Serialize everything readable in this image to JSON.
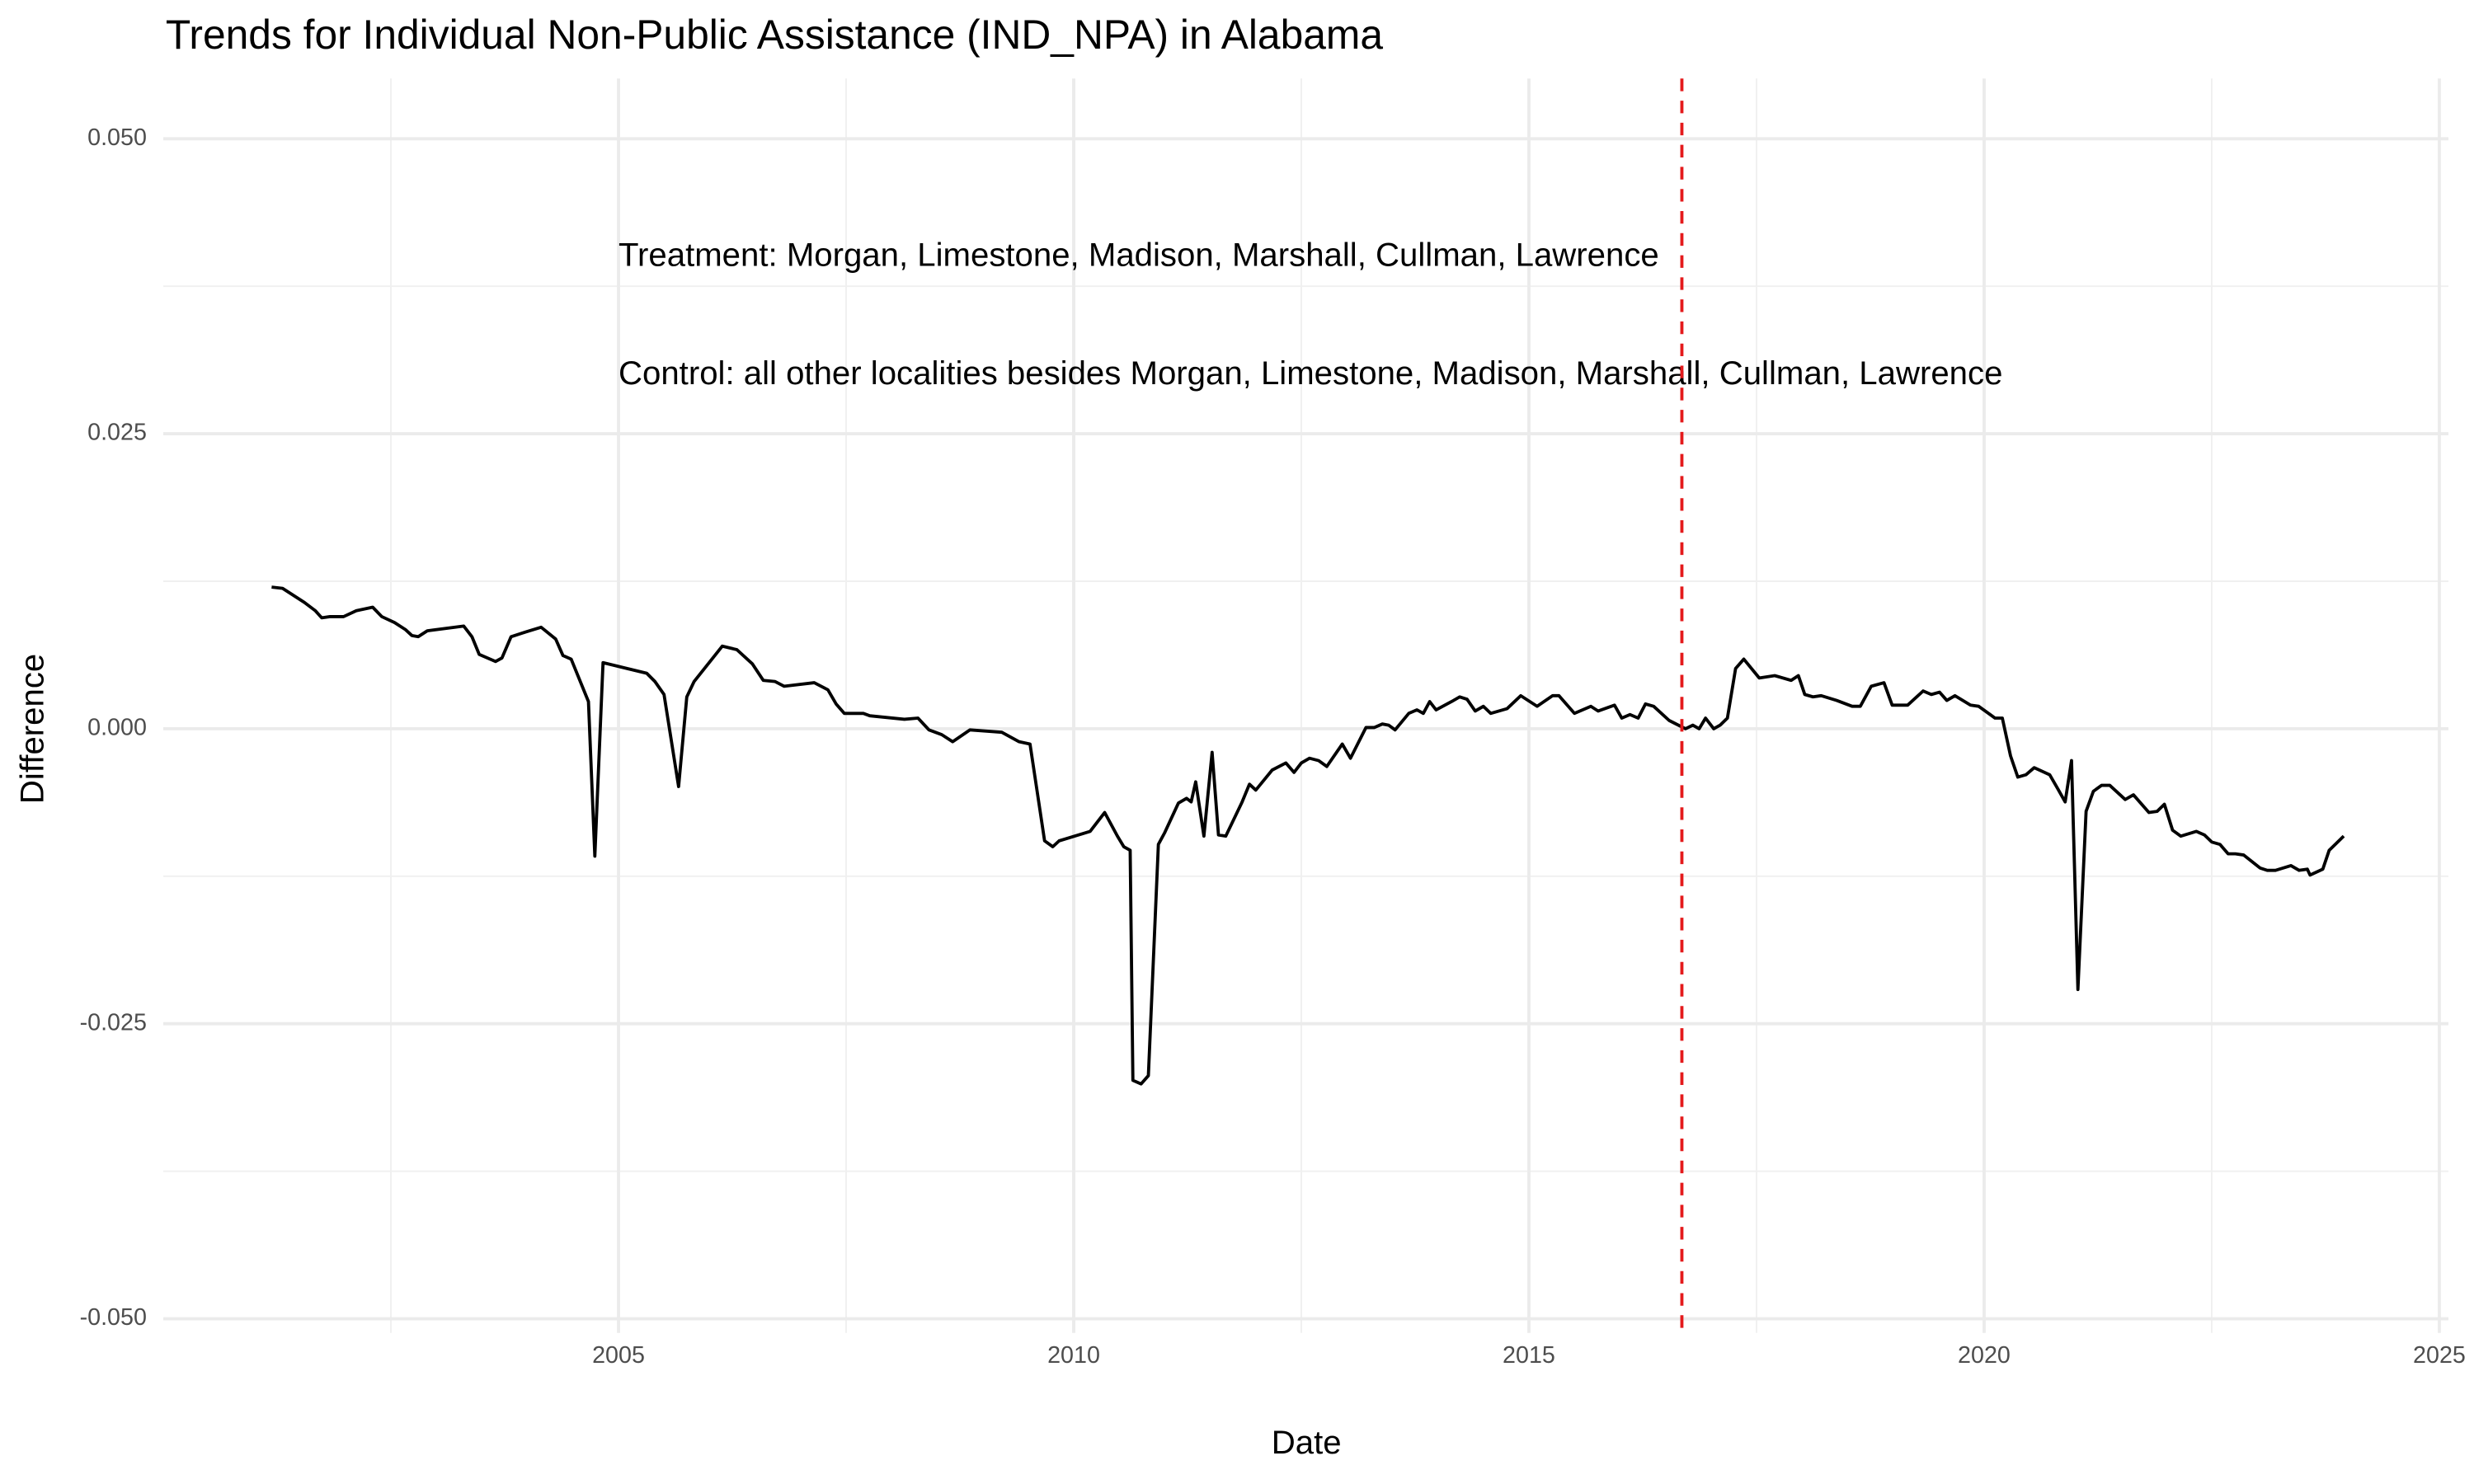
{
  "chart_data": {
    "type": "line",
    "title": "Trends for Individual Non-Public Assistance (IND_NPA) in Alabama",
    "x_label": "Date",
    "y_label": "Difference",
    "annotations": [
      "Treatment: Morgan, Limestone, Madison, Marshall, Cullman, Lawrence",
      "Control: all other localities besides Morgan, Limestone, Madison, Marshall, Cullman, Lawrence"
    ],
    "color": "#000000",
    "vline": {
      "x": 2016.68,
      "color": "#e41a1c"
    },
    "xlim": [
      2000.0,
      2025.1
    ],
    "ylim": [
      -0.0512,
      0.0551
    ],
    "xticks": [
      2005,
      2010,
      2015,
      2020,
      2025
    ],
    "yticks": [
      {
        "value": 0.05,
        "label": "0.050"
      },
      0.025,
      {
        "value": 0,
        "label": "0.000"
      },
      -0.025,
      {
        "value": -0.05,
        "label": "-0.050"
      }
    ],
    "x_minor_ticks": [
      2002.5,
      2007.5,
      2012.5,
      2017.5,
      2022.5
    ],
    "y_minor_ticks": [
      0.0375,
      0.0125,
      -0.0125,
      -0.0375
    ],
    "grid": true,
    "x": [
      2001.19,
      2001.31,
      2001.41,
      2001.55,
      2001.67,
      2001.74,
      2001.83,
      2001.98,
      2002.12,
      2002.3,
      2002.4,
      2002.54,
      2002.66,
      2002.73,
      2002.8,
      2002.9,
      2003.3,
      2003.39,
      2003.47,
      2003.65,
      2003.72,
      2003.82,
      2003.98,
      2004.15,
      2004.31,
      2004.39,
      2004.48,
      2004.67,
      2004.74,
      2004.83,
      2005.31,
      2005.4,
      2005.5,
      2005.66,
      2005.75,
      2005.83,
      2006.14,
      2006.3,
      2006.47,
      2006.59,
      2006.72,
      2006.82,
      2007.15,
      2007.3,
      2007.39,
      2007.48,
      2007.69,
      2007.76,
      2008.14,
      2008.29,
      2008.41,
      2008.55,
      2008.67,
      2008.86,
      2009.21,
      2009.4,
      2009.52,
      2009.68,
      2009.77,
      2009.84,
      2010.18,
      2010.34,
      2010.48,
      2010.55,
      2010.62,
      2010.65,
      2010.74,
      2010.82,
      2010.93,
      2011.0,
      2011.15,
      2011.24,
      2011.29,
      2011.34,
      2011.43,
      2011.52,
      2011.59,
      2011.67,
      2011.85,
      2011.93,
      2012.0,
      2012.18,
      2012.33,
      2012.42,
      2012.5,
      2012.59,
      2012.69,
      2012.78,
      2012.95,
      2013.04,
      2013.21,
      2013.3,
      2013.39,
      2013.46,
      2013.53,
      2013.68,
      2013.77,
      2013.84,
      2013.91,
      2013.98,
      2014.15,
      2014.24,
      2014.32,
      2014.41,
      2014.5,
      2014.58,
      2014.76,
      2014.91,
      2015.09,
      2015.26,
      2015.33,
      2015.5,
      2015.68,
      2015.76,
      2015.94,
      2016.02,
      2016.11,
      2016.2,
      2016.28,
      2016.37,
      2016.54,
      2016.72,
      2016.8,
      2016.87,
      2016.94,
      2017.03,
      2017.1,
      2017.18,
      2017.27,
      2017.36,
      2017.53,
      2017.7,
      2017.88,
      2017.96,
      2018.03,
      2018.12,
      2018.21,
      2018.38,
      2018.55,
      2018.64,
      2018.76,
      2018.9,
      2018.99,
      2019.16,
      2019.33,
      2019.42,
      2019.51,
      2019.59,
      2019.68,
      2019.85,
      2019.94,
      2020.12,
      2020.2,
      2020.29,
      2020.37,
      2020.46,
      2020.55,
      2020.72,
      2020.81,
      2020.89,
      2020.96,
      2021.03,
      2021.12,
      2021.2,
      2021.29,
      2021.38,
      2021.55,
      2021.64,
      2021.81,
      2021.9,
      2021.98,
      2022.07,
      2022.16,
      2022.33,
      2022.42,
      2022.5,
      2022.59,
      2022.68,
      2022.76,
      2022.85,
      2023.03,
      2023.11,
      2023.2,
      2023.37,
      2023.46,
      2023.55,
      2023.58,
      2023.72,
      2023.79,
      2023.95
    ],
    "values": [
      0.012,
      0.0119,
      0.0114,
      0.0107,
      0.01,
      0.0094,
      0.0095,
      0.0095,
      0.01,
      0.0103,
      0.0095,
      0.009,
      0.0084,
      0.0079,
      0.0078,
      0.0083,
      0.0087,
      0.0078,
      0.0063,
      0.0057,
      0.006,
      0.0078,
      0.0082,
      0.0086,
      0.0076,
      0.0062,
      0.0059,
      0.0023,
      -0.0108,
      0.0056,
      0.0047,
      0.004,
      0.0029,
      -0.0049,
      0.0027,
      0.004,
      0.007,
      0.0067,
      0.0055,
      0.0041,
      0.004,
      0.0036,
      0.0039,
      0.0033,
      0.0021,
      0.0013,
      0.0013,
      0.0011,
      0.0008,
      0.0009,
      -0.0001,
      -0.0005,
      -0.0011,
      -0.0001,
      -0.0003,
      -0.0011,
      -0.0013,
      -0.0095,
      -0.01,
      -0.0095,
      -0.0087,
      -0.0071,
      -0.0091,
      -0.01,
      -0.0103,
      -0.0298,
      -0.0301,
      -0.0294,
      -0.0098,
      -0.0088,
      -0.0063,
      -0.0059,
      -0.0062,
      -0.0045,
      -0.0091,
      -0.002,
      -0.009,
      -0.0091,
      -0.0062,
      -0.0047,
      -0.0052,
      -0.0035,
      -0.0029,
      -0.0037,
      -0.0029,
      -0.0025,
      -0.0027,
      -0.0032,
      -0.0013,
      -0.0025,
      0.0001,
      0.0001,
      0.0004,
      0.0003,
      -0.0001,
      0.0013,
      0.0016,
      0.0013,
      0.0023,
      0.0016,
      0.0023,
      0.0027,
      0.0025,
      0.0015,
      0.0019,
      0.0013,
      0.0017,
      0.0028,
      0.0019,
      0.0028,
      0.0028,
      0.0013,
      0.0019,
      0.0015,
      0.002,
      0.0009,
      0.0012,
      0.0009,
      0.0021,
      0.0019,
      0.0007,
      0.0,
      0.0003,
      0.0,
      0.0009,
      0.0,
      0.0003,
      0.0009,
      0.0051,
      0.0059,
      0.0043,
      0.0045,
      0.0041,
      0.0045,
      0.0029,
      0.0027,
      0.0028,
      0.0024,
      0.0019,
      0.0019,
      0.0036,
      0.0039,
      0.002,
      0.002,
      0.0032,
      0.0029,
      0.0031,
      0.0024,
      0.0028,
      0.002,
      0.0019,
      0.0009,
      0.0009,
      -0.0023,
      -0.0041,
      -0.0039,
      -0.0033,
      -0.0039,
      -0.0051,
      -0.0062,
      -0.0027,
      -0.0221,
      -0.007,
      -0.0053,
      -0.0048,
      -0.0048,
      -0.006,
      -0.0056,
      -0.0071,
      -0.007,
      -0.0064,
      -0.0086,
      -0.0091,
      -0.0087,
      -0.009,
      -0.0096,
      -0.0098,
      -0.0106,
      -0.0106,
      -0.0107,
      -0.0118,
      -0.012,
      -0.012,
      -0.0116,
      -0.012,
      -0.0119,
      -0.0124,
      -0.0119,
      -0.0103,
      -0.0091
    ]
  }
}
